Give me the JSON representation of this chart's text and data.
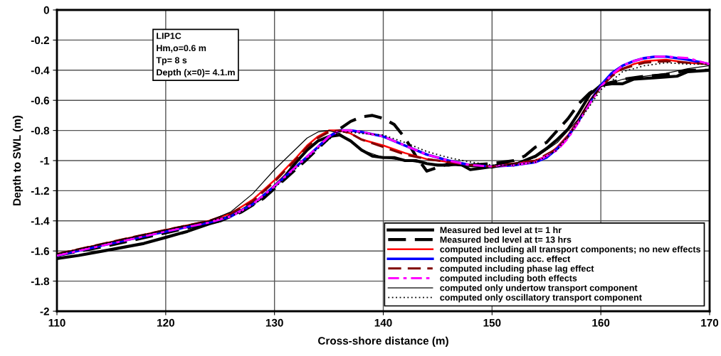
{
  "chart_data": {
    "type": "line",
    "xlabel": "Cross-shore distance (m)",
    "ylabel": "Depth to SWL (m)",
    "xlim": [
      110,
      170
    ],
    "xticks": [
      110,
      120,
      130,
      140,
      150,
      160,
      170
    ],
    "ylim": [
      -2,
      0
    ],
    "yticks": [
      -2,
      -1.8,
      -1.6,
      -1.4,
      -1.2,
      -1,
      -0.8,
      -0.6,
      -0.4,
      -0.2,
      0
    ],
    "grid": true,
    "legend": "bottom right",
    "marker": "none",
    "annotations": [
      "LIP1C\nHm,o=0.6 m\nTp= 8 s\nDepth (x=0)= 4.1.m"
    ],
    "series": [
      {
        "name": "Measured bed level at t= 1 hr",
        "color": "#000000",
        "line_style": "solid",
        "x": [
          110,
          112,
          115,
          118,
          120,
          122,
          124,
          125,
          127,
          129,
          131,
          132,
          133,
          134,
          135,
          136,
          137,
          138,
          139,
          140,
          141,
          142,
          143,
          144,
          145,
          146,
          147,
          148,
          149,
          150,
          151,
          152,
          153,
          154,
          155,
          156,
          157,
          158,
          159,
          160,
          161,
          162,
          163,
          165,
          167,
          168,
          170
        ],
        "values": [
          -1.65,
          -1.63,
          -1.59,
          -1.55,
          -1.51,
          -1.47,
          -1.42,
          -1.4,
          -1.33,
          -1.24,
          -1.1,
          -1.01,
          -0.93,
          -0.87,
          -0.84,
          -0.83,
          -0.87,
          -0.93,
          -0.97,
          -0.98,
          -0.98,
          -1.0,
          -1.0,
          -1.02,
          -1.03,
          -1.03,
          -1.02,
          -1.06,
          -1.05,
          -1.04,
          -1.02,
          -1.03,
          -1.0,
          -0.97,
          -0.92,
          -0.86,
          -0.79,
          -0.68,
          -0.56,
          -0.5,
          -0.49,
          -0.49,
          -0.46,
          -0.45,
          -0.44,
          -0.41,
          -0.4
        ]
      },
      {
        "name": "Measured bed level at t= 13 hrs",
        "color": "#000000",
        "line_style": "dashed",
        "x": [
          110,
          115,
          120,
          123,
          125,
          127,
          129,
          131,
          133,
          134,
          135,
          136,
          137,
          138,
          139,
          140,
          141,
          142,
          143,
          144,
          146,
          148,
          150,
          152,
          153,
          154,
          155,
          156,
          157,
          158,
          159,
          160,
          162,
          164,
          166,
          168,
          170
        ],
        "values": [
          -1.63,
          -1.56,
          -1.48,
          -1.43,
          -1.4,
          -1.34,
          -1.25,
          -1.12,
          -0.99,
          -0.92,
          -0.85,
          -0.79,
          -0.74,
          -0.71,
          -0.7,
          -0.72,
          -0.76,
          -0.85,
          -0.97,
          -1.07,
          -1.02,
          -1.03,
          -1.02,
          -1.0,
          -0.97,
          -0.91,
          -0.88,
          -0.8,
          -0.72,
          -0.62,
          -0.55,
          -0.5,
          -0.46,
          -0.44,
          -0.43,
          -0.4,
          -0.4
        ]
      },
      {
        "name": "computed including all transport components; no new effects",
        "color": "#ff0000",
        "line_style": "solid",
        "x": [
          110,
          115,
          120,
          124,
          126,
          128,
          130,
          132,
          133,
          134,
          135,
          136,
          137,
          138,
          140,
          142,
          144,
          146,
          148,
          150,
          152,
          154,
          155,
          156,
          157,
          158,
          159,
          160,
          161,
          162,
          163,
          164,
          166,
          168,
          170
        ],
        "values": [
          -1.62,
          -1.54,
          -1.46,
          -1.4,
          -1.35,
          -1.26,
          -1.13,
          -0.98,
          -0.9,
          -0.84,
          -0.8,
          -0.8,
          -0.82,
          -0.86,
          -0.9,
          -0.95,
          -0.99,
          -1.01,
          -1.03,
          -1.04,
          -1.02,
          -1.0,
          -0.97,
          -0.91,
          -0.83,
          -0.72,
          -0.6,
          -0.5,
          -0.43,
          -0.39,
          -0.36,
          -0.34,
          -0.33,
          -0.35,
          -0.36
        ]
      },
      {
        "name": "computed including acc. effect",
        "color": "#0000ff",
        "line_style": "solid",
        "x": [
          110,
          115,
          120,
          124,
          126,
          128,
          130,
          132,
          134,
          135,
          136,
          137,
          138,
          140,
          142,
          144,
          146,
          148,
          150,
          152,
          154,
          155,
          156,
          157,
          158,
          159,
          160,
          161,
          162,
          163,
          164,
          165,
          166,
          168,
          170
        ],
        "values": [
          -1.63,
          -1.55,
          -1.47,
          -1.41,
          -1.37,
          -1.29,
          -1.17,
          -1.04,
          -0.91,
          -0.84,
          -0.8,
          -0.8,
          -0.81,
          -0.84,
          -0.9,
          -0.96,
          -1.0,
          -1.03,
          -1.04,
          -1.03,
          -1.01,
          -0.98,
          -0.92,
          -0.84,
          -0.73,
          -0.61,
          -0.5,
          -0.42,
          -0.37,
          -0.34,
          -0.32,
          -0.31,
          -0.31,
          -0.33,
          -0.36
        ]
      },
      {
        "name": "computed including phase lag effect",
        "color": "#800000",
        "line_style": "dashed",
        "x": [
          110,
          115,
          120,
          124,
          126,
          128,
          130,
          132,
          133,
          134,
          135,
          136,
          137,
          138,
          140,
          142,
          144,
          146,
          148,
          150,
          152,
          154,
          156,
          157,
          158,
          159,
          160,
          161,
          162,
          164,
          166,
          168,
          170
        ],
        "values": [
          -1.62,
          -1.54,
          -1.46,
          -1.4,
          -1.35,
          -1.27,
          -1.14,
          -0.99,
          -0.91,
          -0.85,
          -0.81,
          -0.8,
          -0.82,
          -0.86,
          -0.91,
          -0.96,
          -0.99,
          -1.01,
          -1.03,
          -1.04,
          -1.02,
          -1.0,
          -0.92,
          -0.84,
          -0.73,
          -0.61,
          -0.51,
          -0.44,
          -0.39,
          -0.35,
          -0.34,
          -0.35,
          -0.36
        ]
      },
      {
        "name": "computed including both effects",
        "color": "#ff00ff",
        "line_style": "dashdot",
        "x": [
          110,
          115,
          120,
          124,
          126,
          128,
          130,
          132,
          134,
          135,
          136,
          137,
          138,
          140,
          142,
          144,
          146,
          148,
          150,
          152,
          154,
          156,
          157,
          158,
          159,
          160,
          161,
          162,
          163,
          164,
          165,
          166,
          168,
          170
        ],
        "values": [
          -1.63,
          -1.55,
          -1.47,
          -1.41,
          -1.37,
          -1.29,
          -1.17,
          -1.04,
          -0.91,
          -0.84,
          -0.8,
          -0.8,
          -0.81,
          -0.84,
          -0.9,
          -0.96,
          -1.0,
          -1.03,
          -1.04,
          -1.03,
          -1.01,
          -0.93,
          -0.85,
          -0.74,
          -0.62,
          -0.51,
          -0.43,
          -0.37,
          -0.34,
          -0.32,
          -0.31,
          -0.31,
          -0.32,
          -0.36
        ]
      },
      {
        "name": "computed only undertow transport component",
        "color": "#000000",
        "line_style": "solid",
        "x": [
          110,
          115,
          120,
          124,
          126,
          128,
          130,
          132,
          133,
          134,
          135,
          136,
          137,
          138,
          140,
          142,
          144,
          146,
          148,
          150,
          152,
          154,
          156,
          158,
          159,
          160,
          162,
          164,
          166,
          168,
          170
        ],
        "values": [
          -1.62,
          -1.54,
          -1.46,
          -1.4,
          -1.34,
          -1.22,
          -1.06,
          -0.92,
          -0.85,
          -0.81,
          -0.8,
          -0.82,
          -0.87,
          -0.93,
          -0.98,
          -1.0,
          -1.02,
          -1.03,
          -1.04,
          -1.05,
          -1.02,
          -0.98,
          -0.88,
          -0.72,
          -0.6,
          -0.51,
          -0.46,
          -0.44,
          -0.42,
          -0.39,
          -0.37
        ]
      },
      {
        "name": "computed only oscillatory transport component",
        "color": "#000000",
        "line_style": "dotted",
        "x": [
          110,
          115,
          120,
          124,
          126,
          128,
          130,
          132,
          134,
          135,
          136,
          137,
          138,
          140,
          142,
          144,
          146,
          148,
          150,
          152,
          154,
          156,
          158,
          160,
          162,
          164,
          166,
          168,
          170
        ],
        "values": [
          -1.62,
          -1.54,
          -1.46,
          -1.4,
          -1.37,
          -1.3,
          -1.18,
          -1.05,
          -0.92,
          -0.86,
          -0.81,
          -0.81,
          -0.82,
          -0.83,
          -0.88,
          -0.94,
          -0.98,
          -1.01,
          -1.03,
          -1.03,
          -1.01,
          -0.93,
          -0.74,
          -0.53,
          -0.41,
          -0.37,
          -0.35,
          -0.36,
          -0.36
        ]
      }
    ]
  }
}
